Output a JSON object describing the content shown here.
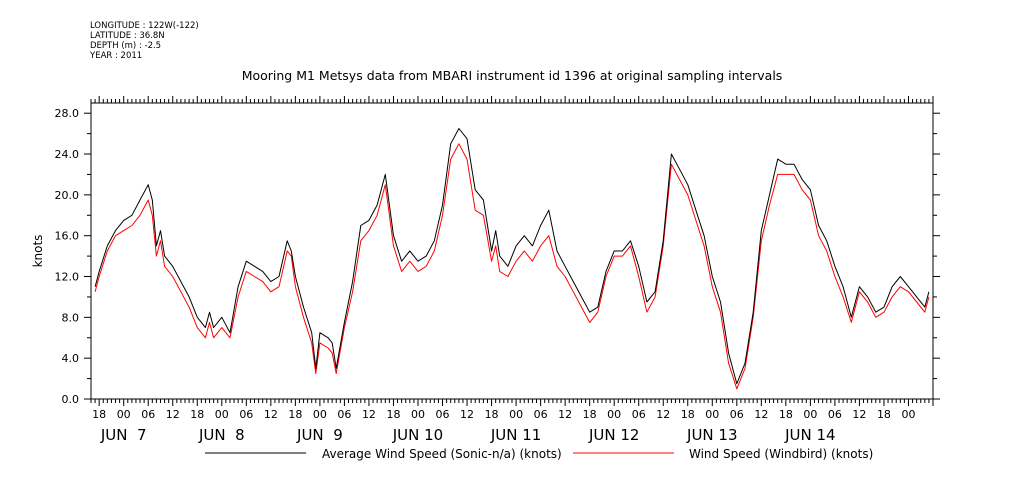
{
  "metadata": {
    "longitude": "LONGITUDE : 122W(-122)",
    "latitude": "LATITUDE : 36.8N",
    "depth": "DEPTH (m) : -2.5",
    "year": "YEAR : 2011"
  },
  "colors": {
    "sonic": "#000000",
    "windbird": "#ff0000"
  },
  "chart_data": {
    "type": "line",
    "title": "Mooring M1 Metsys data from MBARI instrument id 1396 at original sampling intervals",
    "ylabel": "knots",
    "xlabel": "",
    "x_units": "hours after 2011-06-06 18:00",
    "xlim": [
      -2,
      204
    ],
    "ylim": [
      0,
      29
    ],
    "yticks": [
      0,
      4,
      8,
      12,
      16,
      20,
      24,
      28
    ],
    "ytick_labels": [
      "0.0",
      "4.0",
      "8.0",
      "12.0",
      "16.0",
      "20.0",
      "24.0",
      "28.0"
    ],
    "xtick_hours": [
      0,
      6,
      12,
      18,
      24,
      30,
      36,
      42,
      48,
      54,
      60,
      66,
      72,
      78,
      84,
      90,
      96,
      102,
      108,
      114,
      120,
      126,
      132,
      138,
      144,
      150,
      156,
      162,
      168,
      174,
      180,
      186,
      192,
      198
    ],
    "xtick_labels": [
      "18",
      "00",
      "06",
      "12",
      "18",
      "00",
      "06",
      "12",
      "18",
      "00",
      "06",
      "12",
      "18",
      "00",
      "06",
      "12",
      "18",
      "00",
      "06",
      "12",
      "18",
      "00",
      "06",
      "12",
      "18",
      "00",
      "06",
      "12",
      "18",
      "00",
      "06",
      "12",
      "18",
      "00"
    ],
    "date_labels": [
      {
        "hour": 6,
        "label": "JUN  7"
      },
      {
        "hour": 30,
        "label": "JUN  8"
      },
      {
        "hour": 54,
        "label": "JUN  9"
      },
      {
        "hour": 78,
        "label": "JUN 10"
      },
      {
        "hour": 102,
        "label": "JUN 11"
      },
      {
        "hour": 126,
        "label": "JUN 12"
      },
      {
        "hour": 150,
        "label": "JUN 13"
      },
      {
        "hour": 174,
        "label": "JUN 14"
      }
    ],
    "grid": false,
    "legend_position": "bottom",
    "series": [
      {
        "name": "Average Wind Speed (Sonic-n/a) (knots)",
        "x": [
          -1,
          0,
          2,
          4,
          6,
          8,
          10,
          12,
          13,
          14,
          15,
          16,
          18,
          20,
          22,
          24,
          26,
          27,
          28,
          30,
          32,
          34,
          36,
          38,
          40,
          42,
          44,
          46,
          47,
          48,
          50,
          52,
          53,
          54,
          56,
          57,
          58,
          60,
          62,
          64,
          66,
          68,
          70,
          72,
          74,
          76,
          78,
          80,
          82,
          84,
          86,
          88,
          90,
          92,
          94,
          96,
          97,
          98,
          100,
          102,
          104,
          106,
          108,
          110,
          112,
          114,
          116,
          118,
          120,
          122,
          124,
          126,
          128,
          130,
          132,
          134,
          136,
          138,
          140,
          142,
          144,
          146,
          148,
          150,
          152,
          154,
          156,
          158,
          159,
          160,
          162,
          164,
          166,
          168,
          170,
          172,
          174,
          176,
          178,
          180,
          182,
          184,
          186,
          188,
          190,
          192,
          194,
          196,
          198,
          200,
          202,
          203
        ],
        "y": [
          11.0,
          12.5,
          15.0,
          16.5,
          17.5,
          18.0,
          19.5,
          21.0,
          19.5,
          15.0,
          16.5,
          14.0,
          13.0,
          11.5,
          10.0,
          8.0,
          7.0,
          8.5,
          7.0,
          8.0,
          6.5,
          11.0,
          13.5,
          13.0,
          12.5,
          11.5,
          12.0,
          15.5,
          14.5,
          12.0,
          9.0,
          6.5,
          3.0,
          6.5,
          6.0,
          5.5,
          3.0,
          7.5,
          11.5,
          17.0,
          17.5,
          19.0,
          22.0,
          16.0,
          13.5,
          14.5,
          13.5,
          14.0,
          15.5,
          19.0,
          25.0,
          26.5,
          25.5,
          20.5,
          19.5,
          14.5,
          16.5,
          14.0,
          13.0,
          15.0,
          16.0,
          15.0,
          17.0,
          18.5,
          14.5,
          13.0,
          11.5,
          10.0,
          8.5,
          9.0,
          12.5,
          14.5,
          14.5,
          15.5,
          13.0,
          9.5,
          10.5,
          15.5,
          24.0,
          22.5,
          21.0,
          18.5,
          16.0,
          12.0,
          9.5,
          4.5,
          1.5,
          3.5,
          6.0,
          8.5,
          16.5,
          20.0,
          23.5,
          23.0,
          23.0,
          21.5,
          20.5,
          17.0,
          15.5,
          13.0,
          11.0,
          8.0,
          11.0,
          10.0,
          8.5,
          9.0,
          11.0,
          12.0,
          11.0,
          10.0,
          9.0,
          10.5
        ]
      },
      {
        "name": "Wind Speed (Windbird) (knots)",
        "x": [
          -1,
          0,
          2,
          4,
          6,
          8,
          10,
          12,
          13,
          14,
          15,
          16,
          18,
          20,
          22,
          24,
          26,
          27,
          28,
          30,
          32,
          34,
          36,
          38,
          40,
          42,
          44,
          46,
          47,
          48,
          50,
          52,
          53,
          54,
          56,
          57,
          58,
          60,
          62,
          64,
          66,
          68,
          70,
          72,
          74,
          76,
          78,
          80,
          82,
          84,
          86,
          88,
          90,
          92,
          94,
          96,
          97,
          98,
          100,
          102,
          104,
          106,
          108,
          110,
          112,
          114,
          116,
          118,
          120,
          122,
          124,
          126,
          128,
          130,
          132,
          134,
          136,
          138,
          140,
          142,
          144,
          146,
          148,
          150,
          152,
          154,
          156,
          158,
          159,
          160,
          162,
          164,
          166,
          168,
          170,
          172,
          174,
          176,
          178,
          180,
          182,
          184,
          186,
          188,
          190,
          192,
          194,
          196,
          198,
          200,
          202,
          203
        ],
        "y": [
          10.5,
          12.0,
          14.5,
          16.0,
          16.5,
          17.0,
          18.0,
          19.5,
          18.0,
          14.0,
          15.5,
          13.0,
          12.0,
          10.5,
          9.0,
          7.0,
          6.0,
          7.5,
          6.0,
          7.0,
          6.0,
          10.0,
          12.5,
          12.0,
          11.5,
          10.5,
          11.0,
          14.5,
          14.0,
          11.0,
          8.0,
          5.5,
          2.5,
          5.5,
          5.0,
          4.5,
          2.5,
          7.0,
          10.5,
          15.5,
          16.5,
          18.0,
          21.0,
          15.0,
          12.5,
          13.5,
          12.5,
          13.0,
          14.5,
          18.0,
          23.5,
          25.0,
          23.5,
          18.5,
          18.0,
          13.5,
          15.0,
          12.5,
          12.0,
          13.5,
          14.5,
          13.5,
          15.0,
          16.0,
          13.0,
          12.0,
          10.5,
          9.0,
          7.5,
          8.5,
          12.0,
          14.0,
          14.0,
          15.0,
          12.0,
          8.5,
          10.0,
          15.0,
          23.0,
          21.5,
          20.0,
          17.5,
          15.0,
          11.0,
          8.5,
          3.5,
          1.0,
          3.0,
          5.5,
          8.0,
          15.5,
          19.0,
          22.0,
          22.0,
          22.0,
          20.5,
          19.5,
          16.0,
          14.5,
          12.0,
          10.0,
          7.5,
          10.5,
          9.5,
          8.0,
          8.5,
          10.0,
          11.0,
          10.5,
          9.5,
          8.5,
          10.0
        ]
      }
    ]
  }
}
